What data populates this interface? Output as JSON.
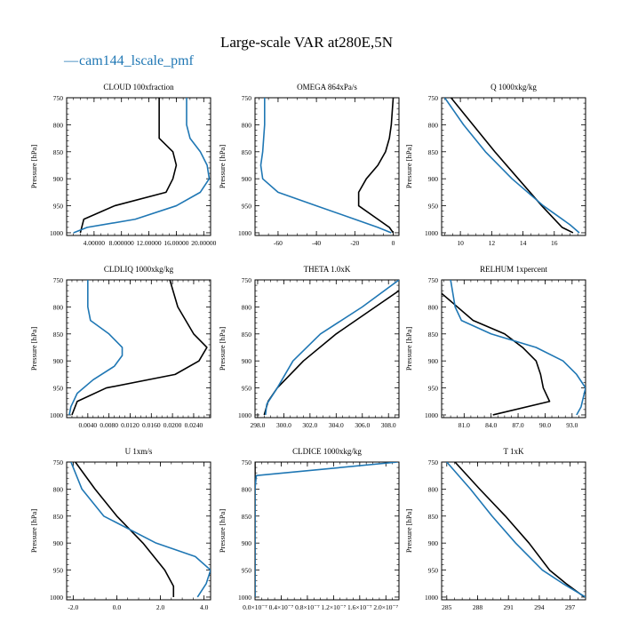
{
  "figure": {
    "title": "Large-scale VAR at280E,5N",
    "legend": {
      "label": "cam144_lscale_pmf",
      "color": "#1f77b4",
      "marker": "—"
    },
    "colors": {
      "series_1": "#000000",
      "series_2": "#1f77b4"
    }
  },
  "chart_data": [
    {
      "type": "line",
      "title": "CLOUD 100xfraction",
      "ylabel": "Pressure [hPa]",
      "xlim": [
        0.0,
        21.0
      ],
      "ylim": [
        1005,
        750
      ],
      "x_ticks": [
        4,
        8,
        12,
        16,
        20
      ],
      "x_tick_labels": [
        "4.00000",
        "8.000000",
        "12.00000",
        "16.00000",
        "20.00000"
      ],
      "y_ticks": [
        750,
        800,
        850,
        900,
        950,
        1000
      ],
      "y_tick_labels": [
        "750",
        "800",
        "850",
        "900",
        "950",
        "1000"
      ],
      "series": [
        {
          "color": "#000000",
          "points": [
            [
              13.5,
              750
            ],
            [
              13.5,
              800
            ],
            [
              13.5,
              825
            ],
            [
              15.5,
              850
            ],
            [
              16,
              875
            ],
            [
              15.5,
              900
            ],
            [
              14.5,
              925
            ],
            [
              7,
              950
            ],
            [
              2.5,
              975
            ],
            [
              2,
              1000
            ]
          ]
        },
        {
          "color": "#1f77b4",
          "points": [
            [
              17.5,
              750
            ],
            [
              17.5,
              800
            ],
            [
              18,
              825
            ],
            [
              19.5,
              850
            ],
            [
              20.5,
              875
            ],
            [
              20.8,
              900
            ],
            [
              19.5,
              925
            ],
            [
              16,
              950
            ],
            [
              10,
              975
            ],
            [
              3,
              990
            ],
            [
              1,
              1000
            ]
          ]
        }
      ]
    },
    {
      "type": "line",
      "title": "OMEGA 864xPa/s",
      "ylabel": "Pressure [hPa]",
      "xlim": [
        -72,
        3
      ],
      "ylim": [
        1005,
        750
      ],
      "x_ticks": [
        -60,
        -40,
        -20,
        0
      ],
      "x_tick_labels": [
        "-60",
        "-40",
        "-20",
        "0"
      ],
      "y_ticks": [
        750,
        800,
        850,
        900,
        950,
        1000
      ],
      "y_tick_labels": [
        "750",
        "800",
        "850",
        "900",
        "950",
        "1000"
      ],
      "series": [
        {
          "color": "#000000",
          "points": [
            [
              0,
              750
            ],
            [
              -1,
              800
            ],
            [
              -2,
              825
            ],
            [
              -4,
              850
            ],
            [
              -8,
              875
            ],
            [
              -14,
              900
            ],
            [
              -18,
              925
            ],
            [
              -18,
              950
            ],
            [
              -8,
              975
            ],
            [
              -2,
              990
            ],
            [
              0,
              1000
            ]
          ]
        },
        {
          "color": "#1f77b4",
          "points": [
            [
              -67,
              750
            ],
            [
              -67,
              800
            ],
            [
              -67.5,
              825
            ],
            [
              -68,
              850
            ],
            [
              -69,
              875
            ],
            [
              -68,
              900
            ],
            [
              -60,
              925
            ],
            [
              -40,
              950
            ],
            [
              -20,
              975
            ],
            [
              -8,
              990
            ],
            [
              -1,
              1000
            ]
          ]
        }
      ]
    },
    {
      "type": "line",
      "title": "Q 1000xkg/kg",
      "ylabel": "Pressure [hPa]",
      "xlim": [
        8.8,
        18.0
      ],
      "ylim": [
        1005,
        750
      ],
      "x_ticks": [
        10,
        12,
        14,
        16
      ],
      "x_tick_labels": [
        "10",
        "12",
        "14",
        "16"
      ],
      "y_ticks": [
        750,
        800,
        850,
        900,
        950,
        1000
      ],
      "y_tick_labels": [
        "750",
        "800",
        "850",
        "900",
        "950",
        "1000"
      ],
      "series": [
        {
          "color": "#000000",
          "points": [
            [
              9.4,
              750
            ],
            [
              10.8,
              800
            ],
            [
              12.2,
              850
            ],
            [
              13.7,
              900
            ],
            [
              15.2,
              950
            ],
            [
              16.5,
              990
            ],
            [
              17.2,
              1000
            ]
          ]
        },
        {
          "color": "#1f77b4",
          "points": [
            [
              9.0,
              750
            ],
            [
              10.2,
              800
            ],
            [
              11.6,
              850
            ],
            [
              13.3,
              900
            ],
            [
              15.3,
              950
            ],
            [
              17.0,
              985
            ],
            [
              17.6,
              1000
            ]
          ]
        }
      ]
    },
    {
      "type": "line",
      "title": "CLDLIQ 1000xkg/kg",
      "ylabel": "Pressure [hPa]",
      "xlim": [
        0.0,
        0.0272
      ],
      "ylim": [
        1005,
        750
      ],
      "x_ticks": [
        0.004,
        0.008,
        0.012,
        0.016,
        0.02,
        0.024
      ],
      "x_tick_labels": [
        "0.0040",
        "0.0080",
        "0.0120",
        "0.0160",
        "0.0200",
        "0.0240"
      ],
      "y_ticks": [
        750,
        800,
        850,
        900,
        950,
        1000
      ],
      "y_tick_labels": [
        "750",
        "800",
        "850",
        "900",
        "950",
        "1000"
      ],
      "series": [
        {
          "color": "#000000",
          "points": [
            [
              0.0195,
              750
            ],
            [
              0.021,
              800
            ],
            [
              0.024,
              850
            ],
            [
              0.0265,
              875
            ],
            [
              0.025,
              900
            ],
            [
              0.0205,
              925
            ],
            [
              0.0075,
              950
            ],
            [
              0.002,
              975
            ],
            [
              0.001,
              1000
            ]
          ]
        },
        {
          "color": "#1f77b4",
          "points": [
            [
              0.004,
              750
            ],
            [
              0.004,
              800
            ],
            [
              0.0045,
              825
            ],
            [
              0.008,
              850
            ],
            [
              0.0105,
              875
            ],
            [
              0.0105,
              890
            ],
            [
              0.009,
              910
            ],
            [
              0.005,
              935
            ],
            [
              0.002,
              960
            ],
            [
              0.0008,
              985
            ],
            [
              0.0005,
              1000
            ]
          ]
        }
      ]
    },
    {
      "type": "line",
      "title": "THETA 1.0xK",
      "ylabel": "Pressure [hPa]",
      "xlim": [
        297.8,
        308.8
      ],
      "ylim": [
        1005,
        750
      ],
      "x_ticks": [
        298,
        300,
        302,
        304,
        306,
        308
      ],
      "x_tick_labels": [
        "298.0",
        "300.0",
        "302.0",
        "304.0",
        "306.0",
        "308.0"
      ],
      "y_ticks": [
        750,
        800,
        850,
        900,
        950,
        1000
      ],
      "y_tick_labels": [
        "750",
        "800",
        "850",
        "900",
        "950",
        "1000"
      ],
      "series": [
        {
          "color": "#000000",
          "points": [
            [
              308.8,
              770
            ],
            [
              307.0,
              800
            ],
            [
              304.0,
              850
            ],
            [
              301.5,
              900
            ],
            [
              299.5,
              950
            ],
            [
              298.8,
              975
            ],
            [
              298.5,
              1000
            ]
          ]
        },
        {
          "color": "#1f77b4",
          "points": [
            [
              308.8,
              750
            ],
            [
              306.0,
              800
            ],
            [
              302.8,
              850
            ],
            [
              300.7,
              900
            ],
            [
              299.5,
              950
            ],
            [
              298.7,
              980
            ],
            [
              298.6,
              1000
            ]
          ]
        }
      ]
    },
    {
      "type": "line",
      "title": "RELHUM 1xpercent",
      "ylabel": "Pressure [hPa]",
      "xlim": [
        78.5,
        94.5
      ],
      "ylim": [
        1005,
        750
      ],
      "x_ticks": [
        81,
        84,
        87,
        90,
        93
      ],
      "x_tick_labels": [
        "81.0",
        "84.0",
        "87.0",
        "90.0",
        "93.0"
      ],
      "y_ticks": [
        750,
        800,
        850,
        900,
        950,
        1000
      ],
      "y_tick_labels": [
        "750",
        "800",
        "850",
        "900",
        "950",
        "1000"
      ],
      "series": [
        {
          "color": "#000000",
          "points": [
            [
              78.5,
              775
            ],
            [
              82.0,
              825
            ],
            [
              85.5,
              850
            ],
            [
              87.5,
              875
            ],
            [
              89.0,
              900
            ],
            [
              89.5,
              925
            ],
            [
              89.8,
              950
            ],
            [
              90.5,
              975
            ],
            [
              84.2,
              1000
            ]
          ]
        },
        {
          "color": "#1f77b4",
          "points": [
            [
              79.5,
              750
            ],
            [
              80.0,
              800
            ],
            [
              80.7,
              825
            ],
            [
              84.0,
              850
            ],
            [
              89.0,
              875
            ],
            [
              92.0,
              900
            ],
            [
              93.5,
              925
            ],
            [
              94.5,
              950
            ],
            [
              94.0,
              985
            ],
            [
              93.5,
              1000
            ]
          ]
        }
      ]
    },
    {
      "type": "line",
      "title": "U 1xm/s",
      "ylabel": "Pressure [hPa]",
      "xlim": [
        -2.3,
        4.3
      ],
      "ylim": [
        1005,
        750
      ],
      "x_ticks": [
        -2,
        0,
        2,
        4
      ],
      "x_tick_labels": [
        "-2.0",
        "0.0",
        "2.0",
        "4.0"
      ],
      "y_ticks": [
        750,
        800,
        850,
        900,
        950,
        1000
      ],
      "y_tick_labels": [
        "750",
        "800",
        "850",
        "900",
        "950",
        "1000"
      ],
      "series": [
        {
          "color": "#000000",
          "points": [
            [
              -1.9,
              750
            ],
            [
              -1.0,
              800
            ],
            [
              0.0,
              850
            ],
            [
              1.2,
              900
            ],
            [
              2.2,
              950
            ],
            [
              2.6,
              980
            ],
            [
              2.6,
              1000
            ]
          ]
        },
        {
          "color": "#1f77b4",
          "points": [
            [
              -2.1,
              750
            ],
            [
              -1.6,
              800
            ],
            [
              -0.6,
              850
            ],
            [
              1.8,
              900
            ],
            [
              3.6,
              925
            ],
            [
              4.3,
              950
            ],
            [
              4.1,
              975
            ],
            [
              3.7,
              1000
            ]
          ]
        }
      ]
    },
    {
      "type": "line",
      "title": "CLDICE 1000xkg/kg",
      "ylabel": "Pressure [hPa]",
      "xlim": [
        0.0,
        2.2e-07
      ],
      "ylim": [
        1005,
        750
      ],
      "x_ticks": [
        0,
        4e-08,
        8e-08,
        1.2e-07,
        1.6e-07,
        2e-07
      ],
      "x_tick_labels": [
        "0.0×10⁻⁷",
        "0.4×10⁻⁷",
        "0.8×10⁻⁷",
        "1.2×10⁻⁷",
        "1.6×10⁻⁷",
        "2.0×10⁻⁷"
      ],
      "y_ticks": [
        750,
        800,
        850,
        900,
        950,
        1000
      ],
      "y_tick_labels": [
        "750",
        "800",
        "850",
        "900",
        "950",
        "1000"
      ],
      "series": [
        {
          "color": "#000000",
          "points": [
            [
              0.0,
              750
            ],
            [
              0.0,
              1000
            ]
          ]
        },
        {
          "color": "#1f77b4",
          "points": [
            [
              2.18e-07,
              750
            ],
            [
              2e-09,
              775
            ],
            [
              0.0,
              800
            ],
            [
              0.0,
              1000
            ]
          ]
        }
      ]
    },
    {
      "type": "line",
      "title": "T 1xK",
      "ylabel": "Pressure [hPa]",
      "xlim": [
        284.5,
        298.5
      ],
      "ylim": [
        1005,
        750
      ],
      "x_ticks": [
        285,
        288,
        291,
        294,
        297
      ],
      "x_tick_labels": [
        "285",
        "288",
        "291",
        "294",
        "297"
      ],
      "y_ticks": [
        750,
        800,
        850,
        900,
        950,
        1000
      ],
      "y_tick_labels": [
        "750",
        "800",
        "850",
        "900",
        "950",
        "1000"
      ],
      "series": [
        {
          "color": "#000000",
          "points": [
            [
              285.8,
              750
            ],
            [
              288.2,
              800
            ],
            [
              290.7,
              850
            ],
            [
              293.0,
              900
            ],
            [
              295.0,
              950
            ],
            [
              296.6,
              975
            ],
            [
              298.4,
              1000
            ]
          ]
        },
        {
          "color": "#1f77b4",
          "points": [
            [
              285.0,
              750
            ],
            [
              287.3,
              800
            ],
            [
              289.4,
              850
            ],
            [
              291.7,
              900
            ],
            [
              294.3,
              950
            ],
            [
              296.3,
              975
            ],
            [
              298.5,
              1000
            ]
          ]
        }
      ]
    }
  ]
}
